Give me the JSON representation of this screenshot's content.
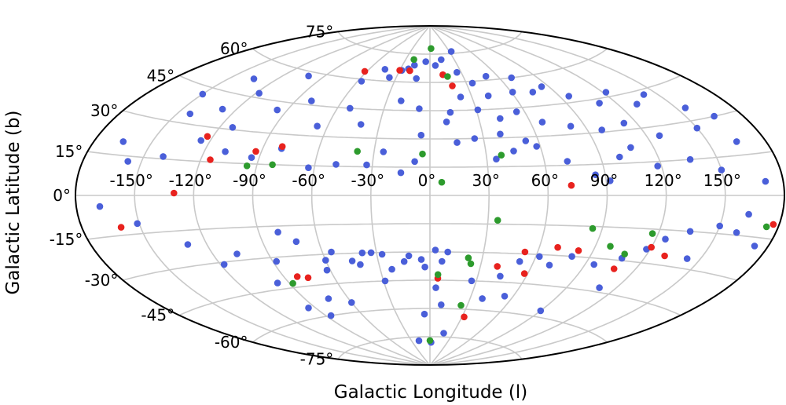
{
  "chart_data": {
    "type": "scatter",
    "projection": "aitoff",
    "title": "",
    "xlabel": "Galactic Longitude (l)",
    "ylabel": "Galactic Latitude (b)",
    "xlim": [
      -180,
      180
    ],
    "ylim": [
      -90,
      90
    ],
    "grid": true,
    "legend": "none",
    "x_ticks": [
      -150,
      -120,
      -90,
      -60,
      -30,
      0,
      30,
      60,
      90,
      120,
      150
    ],
    "x_tick_labels": [
      "-150°",
      "-120°",
      "-90°",
      "-60°",
      "-30°",
      "0°",
      "30°",
      "60°",
      "90°",
      "120°",
      "150°"
    ],
    "y_ticks": [
      -75,
      -60,
      -45,
      -30,
      -15,
      0,
      15,
      30,
      45,
      60,
      75
    ],
    "y_tick_labels": [
      "-75°",
      "-60°",
      "-45°",
      "-30°",
      "-15°",
      "0°",
      "15°",
      "30°",
      "45°",
      "60°",
      "75°"
    ],
    "series": [
      {
        "color": "#4a5fd9",
        "points": [
          [
            -168,
            -4
          ],
          [
            -151,
            -11
          ],
          [
            -130,
            -21
          ],
          [
            -118,
            -31
          ],
          [
            -97,
            -42
          ],
          [
            -80,
            -18
          ],
          [
            -72,
            -23
          ],
          [
            -107,
            -27
          ],
          [
            -88,
            -32
          ],
          [
            -60,
            -33
          ],
          [
            -55,
            -29
          ],
          [
            -62,
            -38
          ],
          [
            -45,
            -34
          ],
          [
            -41,
            -36
          ],
          [
            -38,
            -30
          ],
          [
            -33,
            -30
          ],
          [
            -27,
            -31
          ],
          [
            -23,
            -39
          ],
          [
            -29,
            -45
          ],
          [
            -15,
            -35
          ],
          [
            -12,
            -32
          ],
          [
            -5,
            -34
          ],
          [
            -3,
            -38
          ],
          [
            3,
            -29
          ],
          [
            7,
            -35
          ],
          [
            10,
            -30
          ],
          [
            4,
            -49
          ],
          [
            -5,
            -63
          ],
          [
            9,
            -58
          ],
          [
            18,
            -73
          ],
          [
            -18,
            -77
          ],
          [
            2,
            -78
          ],
          [
            27,
            -45
          ],
          [
            44,
            -42
          ],
          [
            52,
            -34
          ],
          [
            62,
            -31
          ],
          [
            70,
            -35
          ],
          [
            80,
            -30
          ],
          [
            95,
            -33
          ],
          [
            108,
            -29
          ],
          [
            118,
            -24
          ],
          [
            125,
            -19
          ],
          [
            136,
            -15
          ],
          [
            150,
            -12
          ],
          [
            160,
            -14
          ],
          [
            173,
            -18
          ],
          [
            -86,
            -60
          ],
          [
            -74,
            -52
          ],
          [
            -95,
            -55
          ],
          [
            -60,
            -55
          ],
          [
            39,
            -54
          ],
          [
            54,
            -52
          ],
          [
            90,
            -57
          ],
          [
            110,
            -43
          ],
          [
            143,
            -26
          ],
          [
            163,
            -7
          ],
          [
            171,
            5
          ],
          [
            -165,
            20
          ],
          [
            -157,
            13
          ],
          [
            -140,
            16
          ],
          [
            -125,
            24
          ],
          [
            -109,
            20
          ],
          [
            -94,
            18
          ],
          [
            -80,
            23
          ],
          [
            -63,
            14
          ],
          [
            -49,
            16
          ],
          [
            -33,
            16
          ],
          [
            -25,
            23
          ],
          [
            -15,
            12
          ],
          [
            -8,
            18
          ],
          [
            -143,
            34
          ],
          [
            -128,
            38
          ],
          [
            -113,
            31
          ],
          [
            -96,
            41
          ],
          [
            -80,
            47
          ],
          [
            -66,
            35
          ],
          [
            -52,
            45
          ],
          [
            -41,
            37
          ],
          [
            -20,
            50
          ],
          [
            -7,
            46
          ],
          [
            -57,
            59
          ],
          [
            -36,
            62
          ],
          [
            -28,
            66
          ],
          [
            -22,
            67
          ],
          [
            -17,
            69
          ],
          [
            -12,
            62
          ],
          [
            -45,
            66
          ],
          [
            -5,
            71
          ],
          [
            6,
            69
          ],
          [
            14,
            72
          ],
          [
            26,
            65
          ],
          [
            35,
            59
          ],
          [
            33,
            76
          ],
          [
            50,
            62
          ],
          [
            42,
            52
          ],
          [
            22,
            52
          ],
          [
            13,
            44
          ],
          [
            10,
            39
          ],
          [
            31,
            45
          ],
          [
            43,
            40
          ],
          [
            55,
            43
          ],
          [
            61,
            53
          ],
          [
            70,
            60
          ],
          [
            75,
            52
          ],
          [
            85,
            54
          ],
          [
            96,
            48
          ],
          [
            110,
            43
          ],
          [
            122,
            47
          ],
          [
            131,
            40
          ],
          [
            142,
            43
          ],
          [
            155,
            35
          ],
          [
            165,
            30
          ],
          [
            150,
            27
          ],
          [
            127,
            26
          ],
          [
            113,
            33
          ],
          [
            98,
            31
          ],
          [
            82,
            34
          ],
          [
            67,
            37
          ],
          [
            53,
            28
          ],
          [
            45,
            23
          ],
          [
            35,
            19
          ],
          [
            25,
            30
          ],
          [
            15,
            28
          ],
          [
            72,
            17
          ],
          [
            85,
            10
          ],
          [
            100,
            18
          ],
          [
            118,
            13
          ],
          [
            136,
            15
          ],
          [
            150,
            10
          ],
          [
            165,
            20
          ],
          [
            40,
            32
          ],
          [
            58,
            25
          ],
          [
            92,
            7
          ],
          [
            108,
            22
          ],
          [
            -5,
            32
          ],
          [
            -135,
            52
          ],
          [
            -118,
            47
          ],
          [
            -102,
            58
          ],
          [
            -150,
            42
          ]
        ]
      },
      {
        "color": "#e8221e",
        "points": [
          [
            -130,
            1
          ],
          [
            -123,
            26
          ],
          [
            -115,
            16
          ],
          [
            -93,
            21
          ],
          [
            -80,
            24
          ],
          [
            -160,
            -12
          ],
          [
            -62,
            64
          ],
          [
            -30,
            66
          ],
          [
            -20,
            66
          ],
          [
            12,
            64
          ],
          [
            18,
            58
          ],
          [
            72,
            5
          ],
          [
            70,
            -26
          ],
          [
            82,
            -27
          ],
          [
            120,
            -23
          ],
          [
            130,
            -26
          ],
          [
            108,
            -34
          ],
          [
            53,
            -29
          ],
          [
            58,
            -40
          ],
          [
            40,
            -37
          ],
          [
            5,
            -44
          ],
          [
            32,
            -64
          ],
          [
            -82,
            -40
          ],
          [
            -76,
            -41
          ],
          [
            177,
            -10
          ]
        ]
      },
      {
        "color": "#2d9b2d",
        "points": [
          [
            -95,
            14
          ],
          [
            -82,
            15
          ],
          [
            -39,
            23
          ],
          [
            -4,
            22
          ],
          [
            6,
            7
          ],
          [
            38,
            21
          ],
          [
            2,
            78
          ],
          [
            -20,
            72
          ],
          [
            16,
            63
          ],
          [
            35,
            -13
          ],
          [
            85,
            -16
          ],
          [
            98,
            -24
          ],
          [
            117,
            -17
          ],
          [
            108,
            -27
          ],
          [
            174,
            -11
          ],
          [
            22,
            -33
          ],
          [
            24,
            -36
          ],
          [
            5,
            -42
          ],
          [
            -88,
            -43
          ],
          [
            25,
            -58
          ],
          [
            0,
            -77
          ]
        ]
      }
    ]
  }
}
